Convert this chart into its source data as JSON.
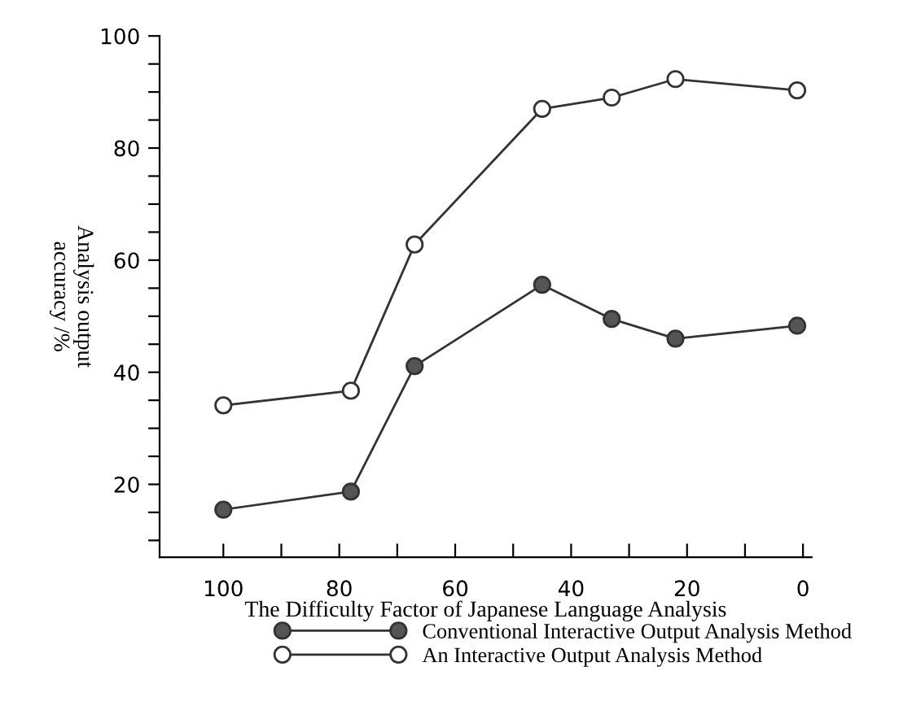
{
  "chart_data": {
    "type": "line",
    "xlabel": "The Difficulty Factor of Japanese Language Analysis",
    "ylabel": "Analysis output\naccuracy /%",
    "xlim": [
      111,
      -1.5
    ],
    "ylim": [
      7,
      100
    ],
    "xticks": [
      100,
      {
        "value": 90,
        "label": null
      },
      80,
      {
        "value": 70,
        "label": null
      },
      60,
      {
        "value": 50,
        "label": null
      },
      40,
      {
        "value": 30,
        "label": null
      },
      20,
      {
        "value": 10,
        "label": null
      },
      0
    ],
    "yticks": [
      {
        "value": 10,
        "label": null
      },
      {
        "value": 15,
        "label": null
      },
      20,
      {
        "value": 25,
        "label": null
      },
      {
        "value": 30,
        "label": null
      },
      {
        "value": 35,
        "label": null
      },
      40,
      {
        "value": 45,
        "label": null
      },
      {
        "value": 50,
        "label": null
      },
      {
        "value": 55,
        "label": null
      },
      60,
      {
        "value": 65,
        "label": null
      },
      {
        "value": 70,
        "label": null
      },
      {
        "value": 75,
        "label": null
      },
      80,
      {
        "value": 85,
        "label": null
      },
      {
        "value": 90,
        "label": null
      },
      {
        "value": 95,
        "label": null
      },
      100
    ],
    "x": [
      100,
      78,
      67,
      45,
      33,
      22,
      1
    ],
    "series": [
      {
        "name": "Conventional Interactive Output Analysis Method",
        "color": "#555555",
        "values": [
          15.5,
          18.7,
          41.1,
          55.6,
          49.5,
          46,
          48.3
        ]
      },
      {
        "name": "An Interactive Output Analysis Method",
        "color": "#ffffff",
        "values": [
          34.1,
          36.7,
          62.8,
          87,
          89,
          92.3,
          90.3
        ]
      }
    ],
    "marker": "circle",
    "line_style": "solid",
    "grid": false,
    "legend": "bottom"
  }
}
